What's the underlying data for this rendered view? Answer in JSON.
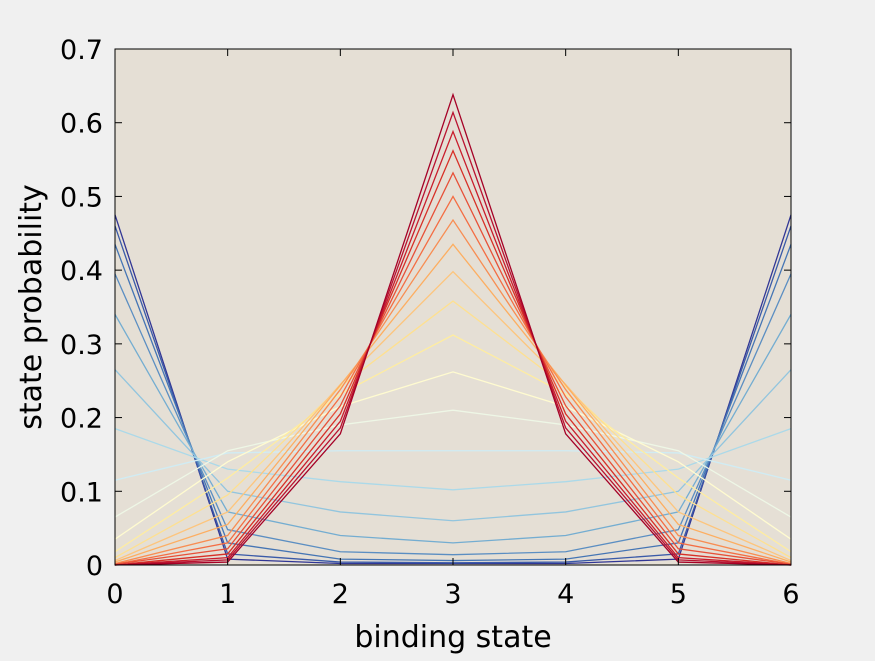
{
  "chart_data": {
    "type": "line",
    "xlabel": "binding state",
    "ylabel": "state probability",
    "xlim": [
      0,
      6
    ],
    "ylim": [
      0,
      0.7
    ],
    "xticks": [
      "0",
      "1",
      "2",
      "3",
      "4",
      "5",
      "6"
    ],
    "yticks": [
      "0",
      "0.1",
      "0.2",
      "0.3",
      "0.4",
      "0.5",
      "0.6",
      "0.7"
    ],
    "grid": false,
    "background_color": "#e5dfd5",
    "x": [
      0,
      1,
      2,
      3,
      4,
      5,
      6
    ],
    "series": [
      {
        "color": "#313695",
        "values": [
          0.475,
          0.008,
          0.002,
          0.002,
          0.002,
          0.008,
          0.475
        ]
      },
      {
        "color": "#3a5aa8",
        "values": [
          0.46,
          0.015,
          0.004,
          0.003,
          0.004,
          0.015,
          0.46
        ]
      },
      {
        "color": "#4575b4",
        "values": [
          0.435,
          0.03,
          0.008,
          0.006,
          0.008,
          0.03,
          0.435
        ]
      },
      {
        "color": "#5b8ec2",
        "values": [
          0.395,
          0.048,
          0.018,
          0.014,
          0.018,
          0.048,
          0.395
        ]
      },
      {
        "color": "#74add1",
        "values": [
          0.34,
          0.072,
          0.04,
          0.03,
          0.04,
          0.072,
          0.34
        ]
      },
      {
        "color": "#92c5de",
        "values": [
          0.265,
          0.1,
          0.072,
          0.06,
          0.072,
          0.1,
          0.265
        ]
      },
      {
        "color": "#abd9e9",
        "values": [
          0.185,
          0.13,
          0.113,
          0.102,
          0.113,
          0.13,
          0.185
        ]
      },
      {
        "color": "#d0ecf4",
        "values": [
          0.115,
          0.152,
          0.155,
          0.155,
          0.155,
          0.152,
          0.115
        ]
      },
      {
        "color": "#eef7e6",
        "values": [
          0.065,
          0.155,
          0.19,
          0.21,
          0.19,
          0.155,
          0.065
        ]
      },
      {
        "color": "#fffbd0",
        "values": [
          0.035,
          0.14,
          0.215,
          0.262,
          0.215,
          0.14,
          0.035
        ]
      },
      {
        "color": "#ffeda0",
        "values": [
          0.018,
          0.118,
          0.232,
          0.312,
          0.232,
          0.118,
          0.018
        ]
      },
      {
        "color": "#fee090",
        "values": [
          0.01,
          0.095,
          0.242,
          0.358,
          0.242,
          0.095,
          0.01
        ]
      },
      {
        "color": "#fdc57d",
        "values": [
          0.006,
          0.072,
          0.245,
          0.398,
          0.245,
          0.072,
          0.006
        ]
      },
      {
        "color": "#fdae61",
        "values": [
          0.004,
          0.055,
          0.244,
          0.435,
          0.244,
          0.055,
          0.004
        ]
      },
      {
        "color": "#f88d52",
        "values": [
          0.002,
          0.04,
          0.238,
          0.468,
          0.238,
          0.04,
          0.002
        ]
      },
      {
        "color": "#f46d43",
        "values": [
          0.001,
          0.03,
          0.228,
          0.5,
          0.228,
          0.03,
          0.001
        ]
      },
      {
        "color": "#e75038",
        "values": [
          0.001,
          0.022,
          0.216,
          0.532,
          0.216,
          0.022,
          0.001
        ]
      },
      {
        "color": "#d73027",
        "values": [
          0.0,
          0.015,
          0.205,
          0.562,
          0.205,
          0.015,
          0.0
        ]
      },
      {
        "color": "#c91d2c",
        "values": [
          0.0,
          0.01,
          0.195,
          0.588,
          0.195,
          0.01,
          0.0
        ]
      },
      {
        "color": "#b91230",
        "values": [
          0.0,
          0.007,
          0.186,
          0.614,
          0.186,
          0.007,
          0.0
        ]
      },
      {
        "color": "#a50026",
        "values": [
          0.0,
          0.004,
          0.178,
          0.638,
          0.178,
          0.004,
          0.0
        ]
      }
    ]
  }
}
